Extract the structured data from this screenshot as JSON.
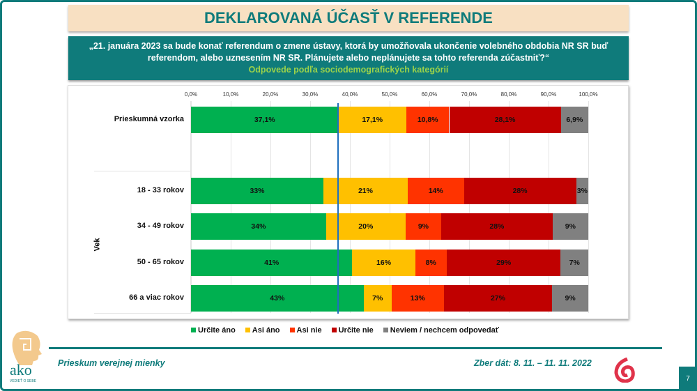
{
  "title": "DEKLAROVANÁ ÚČASŤ V REFERENDE",
  "question": {
    "line1": "„21. januára 2023 sa bude konať referendum o zmene ústavy, ktorá by umožňovala ukončenie volebného obdobia NR SR buď",
    "line2": "referendom, alebo uznesením NR SR. Plánujete alebo neplánujete sa tohto referenda zúčastniť?“",
    "subtitle": "Odpovede podľa sociodemografických kategórií"
  },
  "chart_data": {
    "type": "bar",
    "orientation": "horizontal-stacked",
    "xlim": [
      0,
      100
    ],
    "x_ticks": [
      "0,0%",
      "10,0%",
      "20,0%",
      "30,0%",
      "40,0%",
      "50,0%",
      "60,0%",
      "70,0%",
      "80,0%",
      "90,0%",
      "100,0%"
    ],
    "grid": true,
    "reference_line": 37.1,
    "group_label": "Vek",
    "categories": [
      "Prieskumná vzorka",
      "18 - 33 rokov",
      "34 - 49 rokov",
      "50 - 65 rokov",
      "66 a viac rokov"
    ],
    "series": [
      {
        "name": "Určite áno",
        "color": "#00b050",
        "values": [
          37.1,
          33,
          34,
          41,
          43
        ],
        "labels": [
          "37,1%",
          "33%",
          "34%",
          "41%",
          "43%"
        ]
      },
      {
        "name": "Asi áno",
        "color": "#ffc000",
        "values": [
          17.1,
          21,
          20,
          16,
          7
        ],
        "labels": [
          "17,1%",
          "21%",
          "20%",
          "16%",
          "7%"
        ]
      },
      {
        "name": "Asi nie",
        "color": "#ff3300",
        "values": [
          10.8,
          14,
          9,
          8,
          13
        ],
        "labels": [
          "10,8%",
          "14%",
          "9%",
          "8%",
          "13%"
        ]
      },
      {
        "name": "Určite nie",
        "color": "#c00000",
        "values": [
          28.1,
          28,
          28,
          29,
          27
        ],
        "labels": [
          "28,1%",
          "28%",
          "28%",
          "29%",
          "27%"
        ]
      },
      {
        "name": "Neviem / nechcem odpovedať",
        "color": "#808080",
        "values": [
          6.9,
          3,
          9,
          7,
          9
        ],
        "labels": [
          "6,9%",
          "3%",
          "9%",
          "7%",
          "9%"
        ]
      }
    ],
    "legend_position": "bottom"
  },
  "footer": {
    "left": "Prieskum verejnej mienky",
    "right": "Zber dát: 8. 11. – 11. 11. 2022",
    "page": "7",
    "logo_text": "ako",
    "logo_tagline": "VEDIEŤ O SEBE"
  }
}
